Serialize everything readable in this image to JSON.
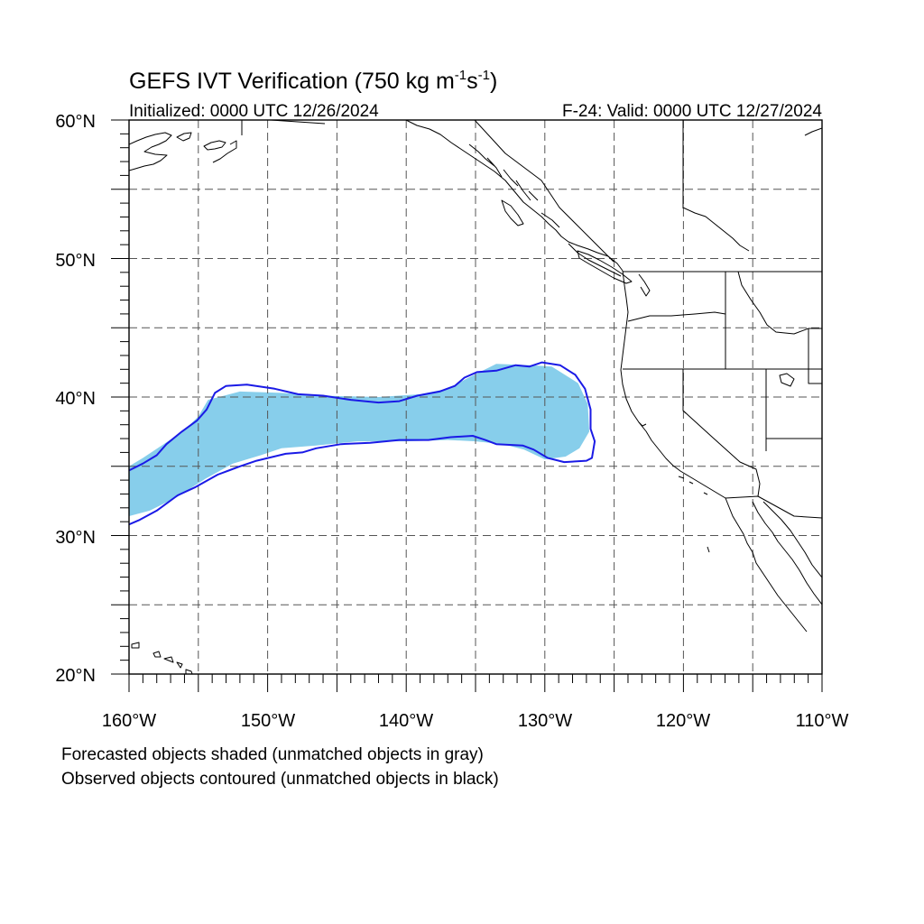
{
  "title": {
    "main": "GEFS IVT Verification (750 kg m",
    "exp1": "-1",
    "mid": "s",
    "exp2": "-1",
    "close": ")"
  },
  "subtitle_left": "Initialized: 0000 UTC 12/26/2024",
  "subtitle_right": "F-24: Valid: 0000 UTC 12/27/2024",
  "footnotes": [
    "Forecasted objects shaded (unmatched objects in gray)",
    "Observed objects contoured (unmatched objects in black)"
  ],
  "map": {
    "projection": "cylindrical equidistant",
    "lon_range": [
      -160,
      -110
    ],
    "lat_range": [
      20,
      60
    ],
    "gridlines": "dashed, every 5°",
    "lon_ticks": [
      {
        "value": -160,
        "label": "160°W"
      },
      {
        "value": -150,
        "label": "150°W"
      },
      {
        "value": -140,
        "label": "140°W"
      },
      {
        "value": -130,
        "label": "130°W"
      },
      {
        "value": -120,
        "label": "120°W"
      },
      {
        "value": -110,
        "label": "110°W"
      }
    ],
    "lat_ticks": [
      {
        "value": 60,
        "label": "60°N"
      },
      {
        "value": 50,
        "label": "50°N"
      },
      {
        "value": 40,
        "label": "40°N"
      },
      {
        "value": 30,
        "label": "30°N"
      },
      {
        "value": 20,
        "label": "20°N"
      }
    ],
    "colors": {
      "forecast_fill": "#87ceeb",
      "observed_contour": "#1a1ae6",
      "coastline": "#000000",
      "grid": "#555555"
    }
  },
  "forecast_object": {
    "matched": true,
    "outline_lonlat": [
      [
        -160,
        35.0
      ],
      [
        -159,
        35.6
      ],
      [
        -157.5,
        36.6
      ],
      [
        -156,
        37.6
      ],
      [
        -155,
        38.6
      ],
      [
        -154.3,
        39.8
      ],
      [
        -152,
        40.4
      ],
      [
        -149,
        40.3
      ],
      [
        -146,
        40.1
      ],
      [
        -142,
        40.0
      ],
      [
        -139,
        40.2
      ],
      [
        -137,
        40.6
      ],
      [
        -135.5,
        41.4
      ],
      [
        -133.5,
        42.4
      ],
      [
        -131,
        42.3
      ],
      [
        -129.5,
        42.2
      ],
      [
        -127.6,
        41.0
      ],
      [
        -126.9,
        39.5
      ],
      [
        -126.8,
        37.5
      ],
      [
        -127.5,
        36.3
      ],
      [
        -128.5,
        35.7
      ],
      [
        -130,
        35.5
      ],
      [
        -131.5,
        36.2
      ],
      [
        -133,
        36.6
      ],
      [
        -135,
        36.8
      ],
      [
        -137,
        36.9
      ],
      [
        -140,
        36.8
      ],
      [
        -143.5,
        36.8
      ],
      [
        -146.5,
        36.5
      ],
      [
        -149,
        36.3
      ],
      [
        -150.5,
        35.8
      ],
      [
        -152.5,
        35.2
      ],
      [
        -154.5,
        34.1
      ],
      [
        -156.5,
        32.8
      ],
      [
        -158.5,
        31.8
      ],
      [
        -160,
        31.4
      ]
    ]
  },
  "observed_object": {
    "matched": true,
    "contour_lonlat": [
      [
        -160,
        34.7
      ],
      [
        -159,
        35.2
      ],
      [
        -158,
        35.8
      ],
      [
        -157.3,
        36.6
      ],
      [
        -156.2,
        37.5
      ],
      [
        -155.1,
        38.3
      ],
      [
        -154.4,
        39.1
      ],
      [
        -153.8,
        40.3
      ],
      [
        -153,
        40.8
      ],
      [
        -151.5,
        40.9
      ],
      [
        -149.5,
        40.6
      ],
      [
        -147.8,
        40.2
      ],
      [
        -146,
        40.1
      ],
      [
        -144,
        39.8
      ],
      [
        -142,
        39.6
      ],
      [
        -140.5,
        39.7
      ],
      [
        -139.2,
        40.1
      ],
      [
        -137.6,
        40.4
      ],
      [
        -136.5,
        40.8
      ],
      [
        -135.8,
        41.4
      ],
      [
        -134.9,
        41.8
      ],
      [
        -133.5,
        41.9
      ],
      [
        -132.1,
        42.3
      ],
      [
        -131.1,
        42.2
      ],
      [
        -130.2,
        42.5
      ],
      [
        -128.9,
        42.3
      ],
      [
        -127.8,
        41.6
      ],
      [
        -127.1,
        40.6
      ],
      [
        -126.7,
        39.1
      ],
      [
        -126.7,
        37.7
      ],
      [
        -126.4,
        36.8
      ],
      [
        -126.6,
        35.6
      ],
      [
        -127.0,
        35.4
      ],
      [
        -128.6,
        35.3
      ],
      [
        -129.8,
        35.6
      ],
      [
        -130.8,
        36.2
      ],
      [
        -131.6,
        36.5
      ],
      [
        -133.5,
        36.6
      ],
      [
        -134.3,
        36.9
      ],
      [
        -135.2,
        37.2
      ],
      [
        -136.8,
        37.1
      ],
      [
        -138.4,
        36.9
      ],
      [
        -140.5,
        36.9
      ],
      [
        -142.6,
        36.7
      ],
      [
        -144.7,
        36.6
      ],
      [
        -146.5,
        36.3
      ],
      [
        -147.5,
        36.0
      ],
      [
        -148.7,
        35.9
      ],
      [
        -150.8,
        35.4
      ],
      [
        -152.0,
        35.0
      ],
      [
        -153.6,
        34.4
      ],
      [
        -155.2,
        33.5
      ],
      [
        -156.5,
        32.9
      ],
      [
        -158.0,
        31.8
      ],
      [
        -159.3,
        31.1
      ],
      [
        -160,
        30.8
      ]
    ]
  }
}
